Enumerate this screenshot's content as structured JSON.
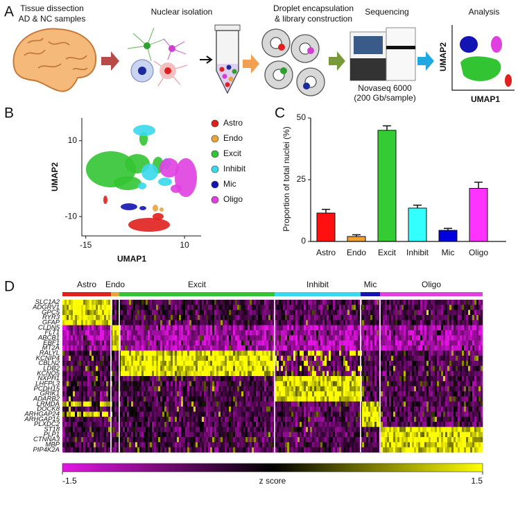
{
  "panel_labels": {
    "a": "A",
    "b": "B",
    "c": "C",
    "d": "D"
  },
  "workflow": {
    "steps": [
      [
        "Tissue dissection",
        "AD & NC samples"
      ],
      [
        "Nuclear isolation"
      ],
      [
        "Droplet encapsulation",
        "& library construction"
      ],
      [
        "Sequencing"
      ],
      [
        "Analysis"
      ]
    ],
    "sequencer": [
      "Novaseq 6000",
      "(200 Gb/sample)"
    ],
    "umap_x": "UMAP1",
    "umap_y": "UMAP2"
  },
  "chart_data": [
    {
      "type": "scatter",
      "xlabel": "UMAP1",
      "ylabel": "UMAP2",
      "xlim": [
        -16,
        14.2
      ],
      "ylim": [
        -15.1,
        16
      ],
      "xticks": [
        -15,
        10
      ],
      "yticks": [
        -10,
        10
      ],
      "series": [
        {
          "name": "Astro",
          "color": "#e0201c"
        },
        {
          "name": "Endo",
          "color": "#e8a33d"
        },
        {
          "name": "Excit",
          "color": "#33c433"
        },
        {
          "name": "Inhibit",
          "color": "#3ad8ec"
        },
        {
          "name": "Mic",
          "color": "#1414b4"
        },
        {
          "name": "Oligo",
          "color": "#e040e0"
        }
      ]
    },
    {
      "type": "bar",
      "ylabel": "Proportion of total nuclei (%)",
      "categories": [
        "Astro",
        "Endo",
        "Excit",
        "Inhibit",
        "Mic",
        "Oligo"
      ],
      "values": [
        11.5,
        2,
        45,
        13.5,
        4.5,
        21.5
      ],
      "errors": [
        1.5,
        0.7,
        1.8,
        1.2,
        0.8,
        2.5
      ],
      "colors": [
        "#ff1010",
        "#f0a030",
        "#33cc33",
        "#33ffff",
        "#0000dd",
        "#ff33ff"
      ],
      "ylim": [
        0,
        50
      ],
      "yticks": [
        0,
        25,
        50
      ]
    },
    {
      "type": "heatmap",
      "groups": [
        {
          "name": "Astro",
          "color": "#e0201c"
        },
        {
          "name": "Endo",
          "color": "#e8a33d"
        },
        {
          "name": "Excit",
          "color": "#33c433"
        },
        {
          "name": "Inhibit",
          "color": "#3ad8ec"
        },
        {
          "name": "Mic",
          "color": "#1414b4"
        },
        {
          "name": "Oligo",
          "color": "#e040e0"
        }
      ],
      "rows": [
        "SLC1A2",
        "ADGRV1",
        "GPC5",
        "RYR3",
        "GFAP",
        "CLDN5",
        "FLT1",
        "ABCB1",
        "EBF1",
        "MT2A",
        "RALYL",
        "KCNIP4",
        "CBLN2",
        "LDB2",
        "KCNQ5",
        "NXPH1",
        "LHFPL3",
        "PCDH15",
        "GRIK1",
        "ADARB2",
        "LRMDA",
        "DOCK8",
        "ARHGAP24",
        "ARHGAP15",
        "PLXDC2",
        "ST18",
        "PLP1",
        "CTNNA3",
        "MBP",
        "PIP4K2A"
      ],
      "colorbar": {
        "label": "z score",
        "lim": [
          -1.5,
          1.5
        ],
        "ticks": [
          -1.5,
          1.5
        ],
        "colors": [
          "#e414e4",
          "#000000",
          "#ffff00"
        ]
      }
    }
  ]
}
